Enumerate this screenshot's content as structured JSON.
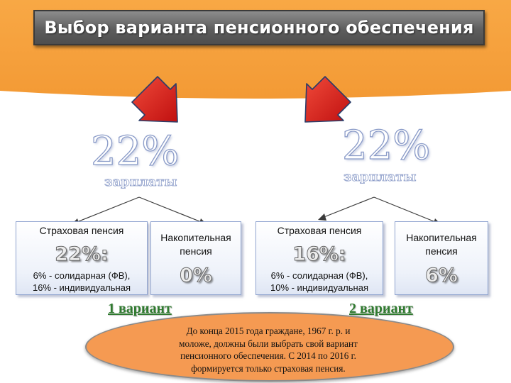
{
  "title": "Выбор варианта  пенсионного обеспечения",
  "colors": {
    "banner": "#f7a240",
    "ellipse": "#f59a52",
    "arrow_red": "#e0201e",
    "variant_green": "#2f7a2f",
    "box_border": "#8fa3cf"
  },
  "variants": [
    {
      "total_pct": "22%",
      "total_label": "зарплаты",
      "insurance": {
        "label": "Страховая пенсия",
        "pct": "22%:",
        "detail_line1": "6% - солидарная (ФВ),",
        "detail_line2": "16% - индивидуальная"
      },
      "funded": {
        "label_line1": "Накопительная",
        "label_line2": "пенсия",
        "pct": "0%"
      },
      "name": "1 вариант"
    },
    {
      "total_pct": "22%",
      "total_label": "зарплаты",
      "insurance": {
        "label": "Страховая пенсия",
        "pct": "16%:",
        "detail_line1": "6% - солидарная (ФВ),",
        "detail_line2": "10% - индивидуальная"
      },
      "funded": {
        "label_line1": "Накопительная",
        "label_line2": "пенсия",
        "pct": "6%"
      },
      "name": "2 вариант"
    }
  ],
  "note": {
    "line1": "До конца 2015 года граждане, 1967 г. р. и",
    "line2": "моложе,  должны были выбрать свой вариант",
    "line3": "пенсионного обеспечения. С 2014 по 2016 г.",
    "line4": "формируется только страховая пенсия."
  }
}
